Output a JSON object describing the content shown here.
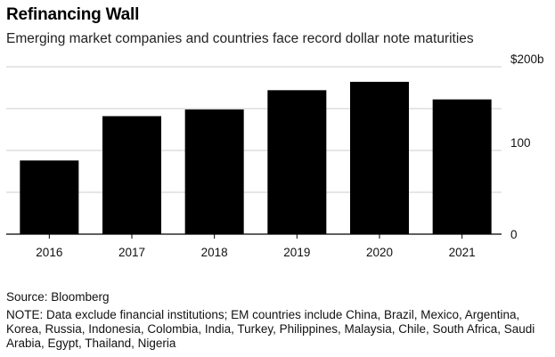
{
  "title": "Refinancing Wall",
  "subtitle": "Emerging market companies and countries face record dollar note maturities",
  "source": "Source: Bloomberg",
  "note": "NOTE: Data exclude financial institutions; EM countries include China, Brazil, Mexico, Argentina, Korea, Russia, Indonesia, Colombia, India, Turkey, Philippines, Malaysia, Chile, South Africa, Saudi Arabia, Egypt, Thailand, Nigeria",
  "chart_data": {
    "type": "bar",
    "title": "Refinancing Wall",
    "subtitle": "Emerging market companies and countries face record dollar note maturities",
    "categories": [
      "2016",
      "2017",
      "2018",
      "2019",
      "2020",
      "2021"
    ],
    "values": [
      88,
      141,
      149,
      172,
      182,
      161
    ],
    "ylim": [
      0,
      200
    ],
    "yticks": [
      0,
      100,
      200
    ],
    "ytick_labels": [
      "0",
      "100",
      "$200b"
    ],
    "y_axis_side": "right",
    "grid": true,
    "bar_color": "#000000",
    "grid_color": "#cccccc"
  }
}
